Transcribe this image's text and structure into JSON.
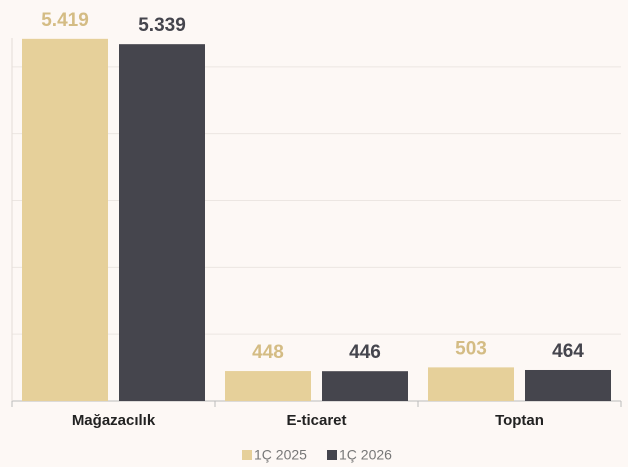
{
  "chart_data": {
    "type": "bar",
    "categories": [
      "Mağazacılık",
      "E-ticaret",
      "Toptan"
    ],
    "series": [
      {
        "name": "1Ç 2025",
        "color": "#e6d09a",
        "label_color": "#d4bc84",
        "values": [
          5419,
          448,
          503
        ],
        "value_labels": [
          "5.419",
          "448",
          "503"
        ]
      },
      {
        "name": "1Ç 2026",
        "color": "#45454d",
        "label_color": "#45454d",
        "values": [
          5339,
          446,
          464
        ],
        "value_labels": [
          "5.339",
          "446",
          "464"
        ]
      }
    ],
    "ylim": [
      0,
      6000
    ],
    "yticks": [
      0,
      1000,
      2000,
      3000,
      4000,
      5000
    ],
    "grid": true,
    "legend": "bottom"
  }
}
